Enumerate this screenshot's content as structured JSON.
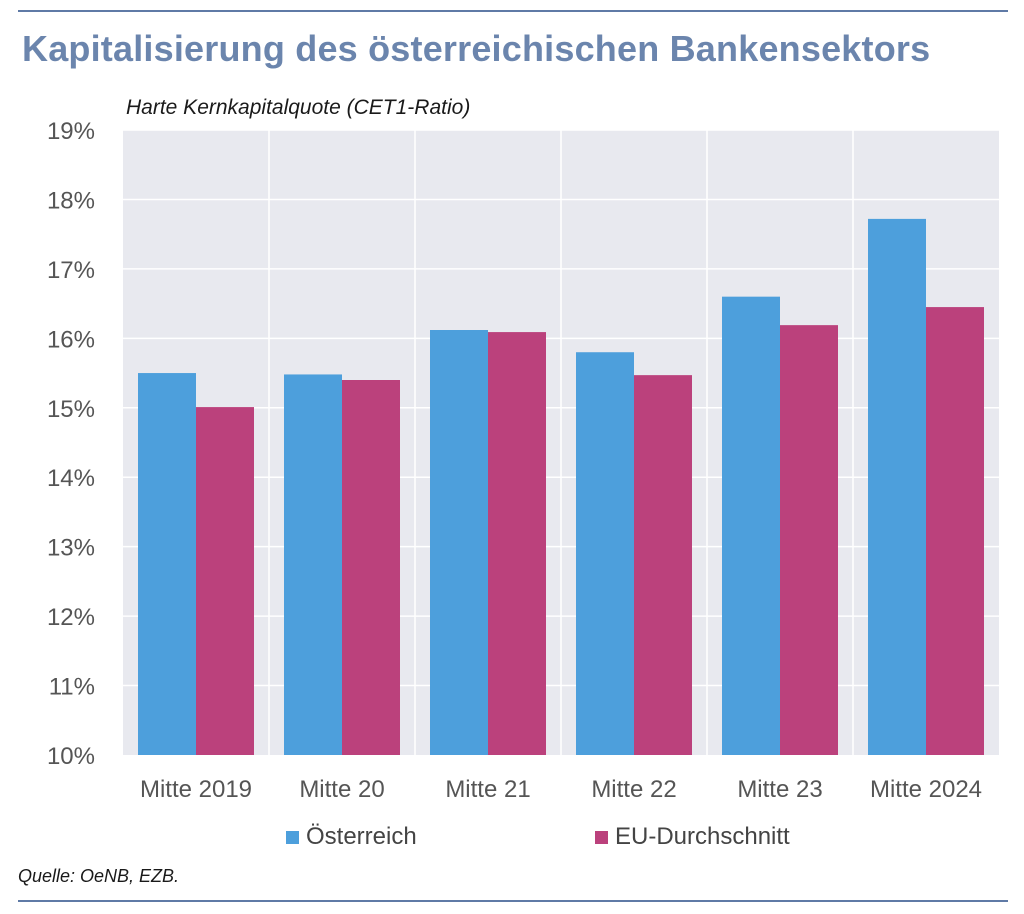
{
  "header": {
    "title": "Kapitalisierung des österreichischen Bankensektors",
    "subtitle": "Harte Kernkapitalquote (CET1-Ratio)"
  },
  "footer": {
    "source": "Quelle: OeNB, EZB."
  },
  "colors": {
    "accent": "#6b85ad",
    "plot_background": "#e8e9ef",
    "oesterreich": "#4d9fdc",
    "eu": "#bb417c"
  },
  "chart_data": {
    "type": "bar",
    "title": "Kapitalisierung des österreichischen Bankensektors",
    "subtitle": "Harte Kernkapitalquote (CET1-Ratio)",
    "xlabel": "",
    "ylabel": "",
    "categories": [
      "Mitte 2019",
      "Mitte 20",
      "Mitte 21",
      "Mitte 22",
      "Mitte 23",
      "Mitte 2024"
    ],
    "series": [
      {
        "name": "Österreich",
        "color": "#4d9fdc",
        "values": [
          15.5,
          15.48,
          16.12,
          15.8,
          16.6,
          17.72
        ]
      },
      {
        "name": "EU-Durchschnitt",
        "color": "#bb417c",
        "values": [
          15.01,
          15.4,
          16.09,
          15.47,
          16.19,
          16.45
        ]
      }
    ],
    "ylim": [
      10,
      19
    ],
    "yticks": [
      "10%",
      "11%",
      "12%",
      "13%",
      "14%",
      "15%",
      "16%",
      "17%",
      "18%",
      "19%"
    ],
    "grid": true,
    "legend_position": "bottom"
  }
}
